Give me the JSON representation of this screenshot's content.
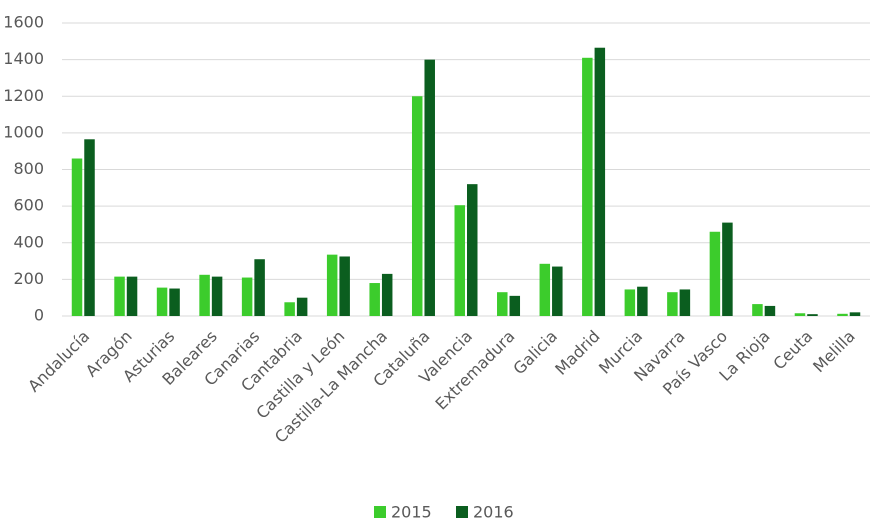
{
  "chart_data": {
    "type": "bar",
    "categories": [
      "Andalucía",
      "Aragón",
      "Asturias",
      "Baleares",
      "Canarias",
      "Cantabria",
      "Castilla y León",
      "Castilla-La Mancha",
      "Cataluña",
      "Valencia",
      "Extremadura",
      "Galicia",
      "Madrid",
      "Murcia",
      "Navarra",
      "País Vasco",
      "La Rioja",
      "Ceuta",
      "Melilla"
    ],
    "series": [
      {
        "name": "2015",
        "color": "#3ccc2c",
        "values": [
          860,
          215,
          155,
          225,
          210,
          75,
          335,
          180,
          1200,
          605,
          130,
          285,
          1410,
          145,
          130,
          460,
          65,
          15,
          12
        ]
      },
      {
        "name": "2016",
        "color": "#0b5e1f",
        "values": [
          965,
          215,
          150,
          215,
          310,
          100,
          325,
          230,
          1400,
          720,
          110,
          270,
          1465,
          160,
          145,
          510,
          55,
          10,
          20
        ]
      }
    ],
    "ylim": [
      0,
      1600
    ],
    "yticks": [
      0,
      200,
      400,
      600,
      800,
      1000,
      1200,
      1400,
      1600
    ],
    "grid": true,
    "legend": "bottom"
  }
}
